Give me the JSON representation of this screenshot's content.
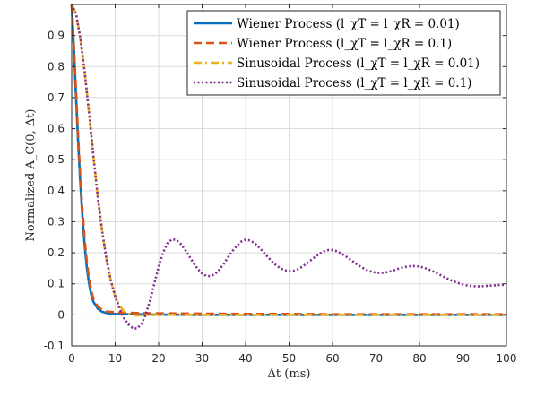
{
  "chart_data": {
    "type": "line",
    "title": "",
    "xlabel": "Δt (ms)",
    "ylabel": "Normalized A_C(0, Δt)",
    "xlim": [
      0,
      100
    ],
    "ylim": [
      -0.1,
      1.0
    ],
    "xticks": [
      "0",
      "10",
      "20",
      "30",
      "40",
      "50",
      "60",
      "70",
      "80",
      "90",
      "100"
    ],
    "yticks": [
      "-0.1",
      "0",
      "0.1",
      "0.2",
      "0.3",
      "0.4",
      "0.5",
      "0.6",
      "0.7",
      "0.8",
      "0.9"
    ],
    "grid": true,
    "legend_position": "top-right",
    "series": [
      {
        "name": "Wiener Process (l_χT = l_χR = 0.01)",
        "color": "#0072BD",
        "style": "solid",
        "x": [
          0,
          0.5,
          1,
          1.5,
          2,
          2.5,
          3,
          3.5,
          4,
          4.5,
          5,
          6,
          7,
          8,
          10,
          15,
          20,
          30,
          40,
          50,
          60,
          70,
          80,
          90,
          100
        ],
        "y": [
          1.0,
          0.86,
          0.7,
          0.55,
          0.42,
          0.31,
          0.22,
          0.15,
          0.1,
          0.065,
          0.042,
          0.02,
          0.01,
          0.006,
          0.003,
          0.002,
          0.001,
          0.0,
          0.0,
          0.0,
          0.0,
          0.0,
          0.0,
          0.0,
          0.0
        ]
      },
      {
        "name": "Wiener Process (l_χT = l_χR = 0.1)",
        "color": "#D95319",
        "style": "dashed",
        "x": [
          0,
          0.5,
          1,
          1.5,
          2,
          2.5,
          3,
          3.5,
          4,
          4.5,
          5,
          6,
          7,
          8,
          10,
          15,
          20,
          30,
          40,
          50,
          60,
          70,
          80,
          90,
          100
        ],
        "y": [
          1.0,
          0.87,
          0.72,
          0.57,
          0.44,
          0.33,
          0.24,
          0.17,
          0.115,
          0.078,
          0.052,
          0.027,
          0.016,
          0.011,
          0.008,
          0.006,
          0.005,
          0.004,
          0.003,
          0.003,
          0.002,
          0.002,
          0.002,
          0.002,
          0.002
        ]
      },
      {
        "name": "Sinusoidal Process (l_χT = l_χR = 0.01)",
        "color": "#EDB120",
        "style": "dashdot",
        "x": [
          0,
          1,
          2,
          3,
          4,
          5,
          6,
          7,
          8,
          9,
          10,
          11,
          12,
          13,
          14,
          15,
          17,
          20,
          30,
          40,
          50,
          60,
          70,
          80,
          90,
          100
        ],
        "y": [
          1.0,
          0.97,
          0.89,
          0.78,
          0.65,
          0.51,
          0.38,
          0.27,
          0.18,
          0.11,
          0.06,
          0.03,
          0.012,
          0.004,
          0.0,
          -0.002,
          -0.001,
          0.0,
          0.0,
          0.0,
          0.0,
          0.0,
          0.0,
          0.0,
          0.0,
          0.0
        ]
      },
      {
        "name": "Sinusoidal Process (l_χT = l_χR = 0.1)",
        "color": "#7E2F8E",
        "style": "dotted",
        "x": [
          0,
          1,
          2,
          3,
          4,
          5,
          6,
          7,
          8,
          9,
          10,
          11,
          12,
          13,
          14,
          15,
          16,
          17,
          18,
          19,
          20,
          21,
          22,
          23,
          24,
          25,
          26,
          27,
          28,
          29,
          30,
          31,
          32,
          33,
          34,
          35,
          36,
          37,
          38,
          39,
          40,
          41,
          42,
          43,
          44,
          45,
          46,
          47,
          48,
          49,
          50,
          51,
          52,
          53,
          54,
          55,
          56,
          57,
          58,
          59,
          60,
          61,
          62,
          63,
          64,
          65,
          66,
          67,
          68,
          69,
          70,
          71,
          72,
          73,
          74,
          75,
          76,
          77,
          78,
          79,
          80,
          81,
          82,
          83,
          84,
          85,
          86,
          87,
          88,
          89,
          90,
          91,
          92,
          93,
          94,
          95,
          96,
          97,
          98,
          99,
          100
        ],
        "y": [
          1.0,
          0.97,
          0.89,
          0.78,
          0.65,
          0.51,
          0.38,
          0.27,
          0.18,
          0.11,
          0.06,
          0.02,
          -0.01,
          -0.03,
          -0.042,
          -0.044,
          -0.03,
          0.0,
          0.045,
          0.1,
          0.155,
          0.2,
          0.23,
          0.243,
          0.242,
          0.23,
          0.212,
          0.19,
          0.168,
          0.148,
          0.133,
          0.125,
          0.125,
          0.132,
          0.146,
          0.165,
          0.186,
          0.206,
          0.223,
          0.236,
          0.242,
          0.24,
          0.232,
          0.219,
          0.204,
          0.188,
          0.173,
          0.16,
          0.15,
          0.144,
          0.141,
          0.142,
          0.147,
          0.155,
          0.165,
          0.176,
          0.187,
          0.197,
          0.205,
          0.209,
          0.209,
          0.205,
          0.198,
          0.189,
          0.179,
          0.169,
          0.159,
          0.151,
          0.144,
          0.139,
          0.136,
          0.135,
          0.136,
          0.139,
          0.143,
          0.148,
          0.152,
          0.155,
          0.157,
          0.157,
          0.156,
          0.152,
          0.147,
          0.141,
          0.134,
          0.127,
          0.12,
          0.113,
          0.107,
          0.102,
          0.098,
          0.095,
          0.093,
          0.092,
          0.092,
          0.093,
          0.094,
          0.095,
          0.096,
          0.097,
          0.097
        ]
      }
    ]
  }
}
